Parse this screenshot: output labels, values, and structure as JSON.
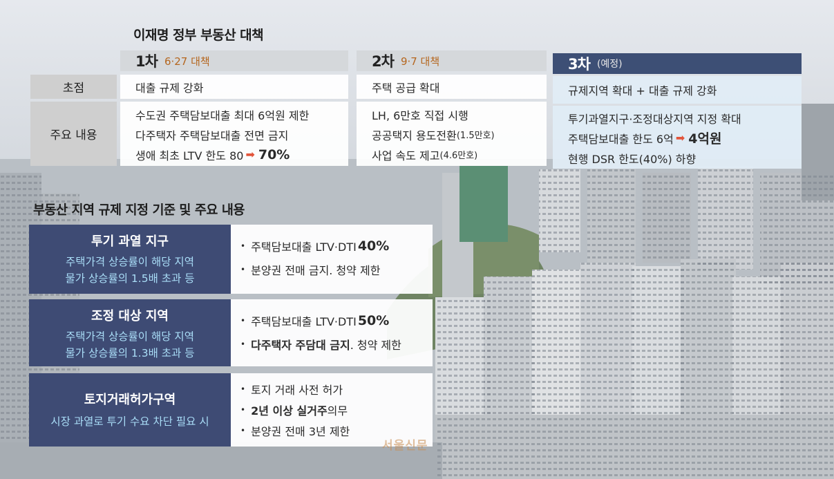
{
  "title_policy": "이재명 정부 부동산 대책",
  "row_labels": {
    "focus": "초점",
    "content": "주요 내용"
  },
  "rounds": [
    {
      "number": "1차",
      "subtitle": "6·27 대책",
      "focus": "대출 규제 강화",
      "items": [
        {
          "text": "수도권 주택담보대출 최대 6억원 제한"
        },
        {
          "text": "다주택자 주택담보대출 전면 금지"
        },
        {
          "text": "생애 최초 LTV 한도 80",
          "highlight": "70%"
        }
      ]
    },
    {
      "number": "2차",
      "subtitle": "9·7 대책",
      "focus": "주택 공급 확대",
      "items": [
        {
          "text": "LH, 6만호 직접 시행"
        },
        {
          "text": "공공택지 용도전환",
          "note": "(1.5만호)"
        },
        {
          "text": "사업 속도 제고",
          "note": "(4.6만호)"
        }
      ]
    },
    {
      "number": "3차",
      "subtitle": "(예정)",
      "focus": "규제지역 확대 + 대출 규제 강화",
      "items": [
        {
          "text": "투기과열지구·조정대상지역 지정 확대"
        },
        {
          "text": "주택담보대출 한도 6억",
          "highlight": "4억원"
        },
        {
          "text": "현행 DSR 한도(40%) 하향"
        }
      ]
    }
  ],
  "title_regulation": "부동산 지역 규제 지정 기준 및 주요 내용",
  "bullet_symbol": "•",
  "zones": [
    {
      "name": "투기 과열 지구",
      "desc_line1": "주택가격 상승률이 해당 지역",
      "desc_line2": "물가 상승률의 1.5배 초과 등",
      "b1_text": "주택담보대출 LTV·DTI ",
      "b1_value": "40%",
      "b2_text": "분양권 전매 금지. 청약 제한"
    },
    {
      "name": "조정 대상 지역",
      "desc_line1": "주택가격 상승률이 해당 지역",
      "desc_line2": "물가 상승률의 1.3배 초과 등",
      "b1_text": "주택담보대출 LTV·DTI ",
      "b1_value": "50%",
      "b2_bold": "다주택자 주담대 금지",
      "b2_text": ". 청약 제한"
    },
    {
      "name": "토지거래허가구역",
      "desc_line1": "시장 과열로 투기 수요 차단 필요 시",
      "b1_text": "토지 거래 사전 허가",
      "b2_bold": "2년 이상 실거주",
      "b2_text": " 의무",
      "b3_text": "분양권 전매 3년 제한"
    }
  ],
  "watermark": "서울신문",
  "colors": {
    "navy": "#3e4b74",
    "light_blue_text": "#a9ddf7",
    "arrow_red": "#e2553b",
    "highlight_orange": "#b5661e"
  }
}
